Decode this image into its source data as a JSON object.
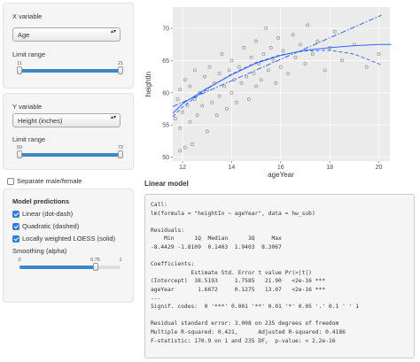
{
  "sidebar": {
    "x_variable": {
      "label": "X variable",
      "selected": "Age",
      "range_label": "Limit range",
      "min": 11,
      "max": 21,
      "range": [
        11,
        21
      ]
    },
    "y_variable": {
      "label": "Y variable",
      "selected": "Height (inches)",
      "range_label": "Limit range",
      "min": 50,
      "max": 72,
      "range": [
        50,
        72
      ]
    },
    "separate": {
      "label": "Separate male/female",
      "checked": false
    },
    "model_predictions": {
      "title": "Model predictions",
      "options": [
        {
          "label": "Linear (dot-dash)",
          "checked": true
        },
        {
          "label": "Quadratic (dashed)",
          "checked": true
        },
        {
          "label": "Locally weighted LOESS (solid)",
          "checked": true
        }
      ],
      "smoothing": {
        "label": "Smoothing (alpha)",
        "min": 0,
        "max": 1,
        "value": 0.75
      }
    }
  },
  "chart_data": {
    "type": "scatter",
    "x_label": "ageYear",
    "y_label": "heightIn",
    "xlim": [
      11.6,
      20.45
    ],
    "ylim": [
      49.4,
      73.3
    ],
    "xticks": [
      12,
      14,
      16,
      18,
      20
    ],
    "yticks": [
      50,
      55,
      60,
      65,
      70
    ],
    "grid": true,
    "point_color": "#7f7f7f",
    "x": [
      11.7,
      11.8,
      11.9,
      11.9,
      12.0,
      12.1,
      12.1,
      12.2,
      12.3,
      12.3,
      12.5,
      12.5,
      12.6,
      12.7,
      12.8,
      12.9,
      13.0,
      13.0,
      13.1,
      13.2,
      13.3,
      13.4,
      13.5,
      13.5,
      13.6,
      13.7,
      13.8,
      13.9,
      14.0,
      14.0,
      14.1,
      14.2,
      14.3,
      14.4,
      14.5,
      14.6,
      14.7,
      14.8,
      14.9,
      15.0,
      15.0,
      15.1,
      15.2,
      15.3,
      15.4,
      15.5,
      15.6,
      15.7,
      15.8,
      15.9,
      16.0,
      16.1,
      16.3,
      16.5,
      16.6,
      16.8,
      17.0,
      17.1,
      17.3,
      17.5,
      17.8,
      18.0,
      18.2,
      18.5,
      19.0,
      19.5,
      20.0,
      11.9,
      12.4
    ],
    "values": [
      56,
      59,
      54.5,
      60.5,
      57,
      62,
      51.5,
      58,
      55.5,
      61,
      59,
      63.5,
      56.5,
      60,
      58,
      62.5,
      54,
      60.5,
      64,
      58.5,
      61.5,
      56.5,
      63,
      59.5,
      66,
      61,
      57.5,
      63.5,
      60,
      65,
      62,
      58.5,
      64,
      61.5,
      67,
      62.5,
      59,
      65.5,
      63,
      61,
      68,
      64.5,
      62,
      66,
      70,
      63.5,
      67,
      65,
      61.5,
      68.5,
      64,
      66.5,
      63,
      69,
      65.5,
      67.5,
      64.5,
      70.5,
      66,
      68,
      63.5,
      67,
      69.5,
      65,
      67.5,
      64,
      66,
      51,
      52
    ],
    "lines": [
      {
        "style": "dot-dash",
        "color": "#3366ff",
        "x": [
          11.6,
          20.1
        ],
        "values": [
          57.86,
          72.03
        ]
      },
      {
        "style": "dashed",
        "color": "#3366ff",
        "x": [
          11.6,
          12,
          13,
          14,
          15,
          16,
          17,
          18,
          19,
          20,
          20.1
        ],
        "values": [
          56.3,
          57.8,
          60.6,
          62.9,
          64.7,
          65.9,
          66.5,
          66.6,
          66.0,
          64.5,
          64.3
        ]
      },
      {
        "style": "solid",
        "color": "#3366ff",
        "x": [
          11.6,
          12,
          13,
          14,
          15,
          16,
          17,
          18,
          19,
          20,
          20.5
        ],
        "values": [
          56.8,
          58.3,
          60.7,
          62.8,
          64.6,
          65.8,
          66.6,
          67.0,
          67.3,
          67.5,
          67.5
        ]
      }
    ]
  },
  "model": {
    "title": "Linear model",
    "output": [
      "Call:",
      "lm(formula = \"heightIn ~ ageYear\", data = hw_sub)",
      "",
      "Residuals:",
      "    Min      1Q  Median      3Q     Max ",
      "-8.4429 -1.8109  0.1403  1.9403  8.3067 ",
      "",
      "Coefficients:",
      "            Estimate Std. Error t value Pr(>|t|)    ",
      "(Intercept)  38.5193     1.7585   21.90   <2e-16 ***",
      "ageYear       1.6672     0.1275   13.07   <2e-16 ***",
      "---",
      "Signif. codes:  0 '***' 0.001 '**' 0.01 '*' 0.05 '.' 0.1 ' ' 1",
      "",
      "Residual standard error: 3.008 on 235 degrees of freedom",
      "Multiple R-squared: 0.421,\tAdjusted R-squared: 0.4186 ",
      "F-statistic: 170.9 on 1 and 235 DF,  p-value: < 2.2e-16"
    ]
  }
}
